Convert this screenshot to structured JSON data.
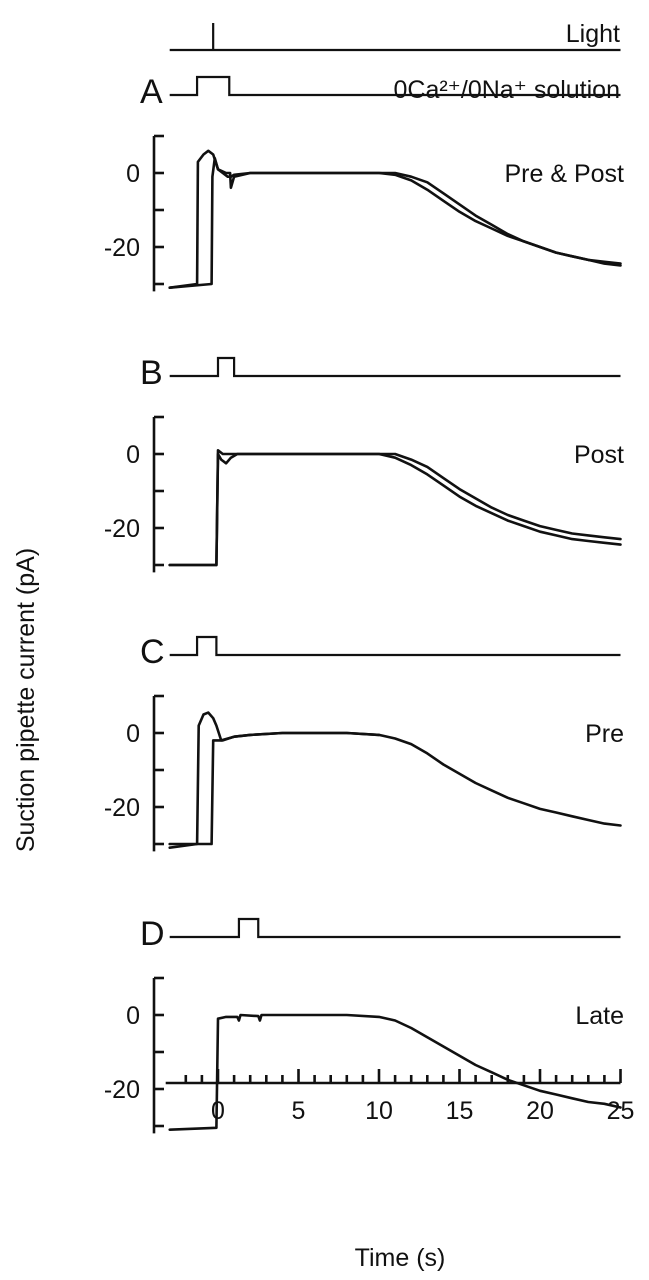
{
  "chart_data": {
    "type": "line",
    "xlabel": "Time (s)",
    "ylabel": "Suction pipette current (pA)",
    "xlim": [
      -3,
      25
    ],
    "x_ticks": [
      0,
      5,
      10,
      15,
      20,
      25
    ],
    "ylim": [
      -32,
      10
    ],
    "y_tick_labels": [
      0,
      -20
    ],
    "stimulus_rows": {
      "light": {
        "label": "Light",
        "flash_time": -0.3
      },
      "solution": {
        "label": "0Ca²⁺/0Na⁺ solution"
      }
    },
    "panels": [
      {
        "letter": "A",
        "condition": "Pre & Post",
        "solution_step": [
          -1.3,
          0.7
        ],
        "series": [
          {
            "x": [
              -3,
              -1.3,
              -1.25,
              -0.9,
              -0.6,
              -0.3,
              0.0,
              0.3,
              0.6,
              0.8,
              1.0,
              2,
              4,
              6,
              8,
              10,
              11,
              12,
              13,
              14,
              15,
              16,
              17,
              18,
              19,
              20,
              21,
              22,
              23,
              24,
              25
            ],
            "y": [
              -31,
              -30,
              3,
              5,
              6,
              5,
              1,
              0,
              -1,
              -1,
              -0.5,
              0,
              0,
              0,
              0,
              0,
              -0.5,
              -2,
              -4.5,
              -7.5,
              -10.5,
              -13,
              -15,
              -17,
              -18.5,
              -20,
              -21.5,
              -22.5,
              -23.5,
              -24.5,
              -25
            ]
          },
          {
            "x": [
              -3,
              -0.4,
              -0.35,
              -0.2,
              0,
              0.5,
              0.75,
              0.8,
              1.0,
              2,
              4,
              6,
              8,
              10,
              11,
              12,
              13,
              14,
              15,
              16,
              17,
              18,
              19,
              20,
              21,
              22,
              23,
              24,
              25
            ],
            "y": [
              -31,
              -30,
              -1,
              4,
              1,
              0,
              0,
              -4,
              -1,
              0,
              0,
              0,
              0,
              0,
              0,
              -1,
              -2.5,
              -5.5,
              -8.5,
              -11.5,
              -14,
              -16.5,
              -18.5,
              -20,
              -21.5,
              -22.5,
              -23.5,
              -24,
              -24.5
            ]
          }
        ]
      },
      {
        "letter": "B",
        "condition": "Post",
        "solution_step": [
          0.0,
          1.0
        ],
        "series": [
          {
            "x": [
              -3,
              -0.1,
              0.0,
              0.2,
              0.5,
              0.8,
              1.2,
              2,
              4,
              6,
              8,
              10,
              11,
              12,
              13,
              14,
              15,
              16,
              17,
              18,
              19,
              20,
              21,
              22,
              23,
              24,
              25
            ],
            "y": [
              -30,
              -30,
              0,
              -1.5,
              -2.5,
              -1,
              0,
              0,
              0,
              0,
              0,
              0,
              -1,
              -3,
              -5.5,
              -8.5,
              -11.5,
              -14,
              -16,
              -18,
              -19.5,
              -21,
              -22,
              -23,
              -23.5,
              -24,
              -24.5
            ]
          },
          {
            "x": [
              -3,
              -0.1,
              0.0,
              0.3,
              1.0,
              2,
              4,
              6,
              8,
              10,
              11,
              12,
              13,
              14,
              15,
              16,
              17,
              18,
              19,
              20,
              21,
              22,
              23,
              24,
              25
            ],
            "y": [
              -30,
              -30,
              1,
              0,
              0,
              0,
              0,
              0,
              0,
              0,
              0,
              -1.5,
              -3.5,
              -6.5,
              -9.5,
              -12,
              -14.5,
              -16.5,
              -18,
              -19.5,
              -20.5,
              -21.5,
              -22,
              -22.5,
              -23
            ]
          }
        ]
      },
      {
        "letter": "C",
        "condition": "Pre",
        "solution_step": [
          -1.3,
          -0.1
        ],
        "series": [
          {
            "x": [
              -3,
              -1.3,
              -1.2,
              -0.9,
              -0.6,
              -0.3,
              -0.1,
              0.2,
              1,
              2,
              4,
              6,
              8,
              10,
              11,
              12,
              13,
              14,
              15,
              16,
              17,
              18,
              19,
              20,
              21,
              22,
              23,
              24,
              25
            ],
            "y": [
              -31,
              -30,
              2,
              5,
              5.5,
              4,
              2,
              -2,
              -1,
              -0.5,
              0,
              0,
              0,
              -0.5,
              -1.5,
              -3,
              -5.5,
              -8.5,
              -11,
              -13.5,
              -15.5,
              -17.5,
              -19,
              -20.5,
              -21.5,
              -22.5,
              -23.5,
              -24.5,
              -25
            ]
          },
          {
            "x": [
              -3,
              -0.4,
              -0.3,
              -0.1,
              0.3,
              1,
              2,
              4,
              6,
              8,
              10
            ],
            "y": [
              -30,
              -30,
              -2,
              -2,
              -2,
              -1,
              -0.5,
              0,
              0,
              0,
              -0.5
            ]
          }
        ]
      },
      {
        "letter": "D",
        "condition": "Late",
        "solution_step": [
          1.3,
          2.5
        ],
        "series": [
          {
            "x": [
              -3,
              -0.1,
              0.0,
              0.5,
              1.2,
              1.3,
              1.4,
              2.5,
              2.6,
              2.7,
              4,
              6,
              8,
              10,
              11,
              12,
              13,
              14,
              15,
              16,
              17,
              18,
              19,
              20,
              21,
              22,
              23,
              24,
              25
            ],
            "y": [
              -31,
              -30.5,
              -1,
              -0.5,
              -0.5,
              -1.5,
              0,
              -0.3,
              -1.5,
              0,
              0,
              0,
              0,
              -0.5,
              -1.5,
              -3.5,
              -6,
              -8.5,
              -11,
              -13.5,
              -15.5,
              -17.5,
              -19,
              -20.5,
              -21.5,
              -22.5,
              -23.5,
              -24,
              -25
            ]
          }
        ]
      }
    ]
  }
}
